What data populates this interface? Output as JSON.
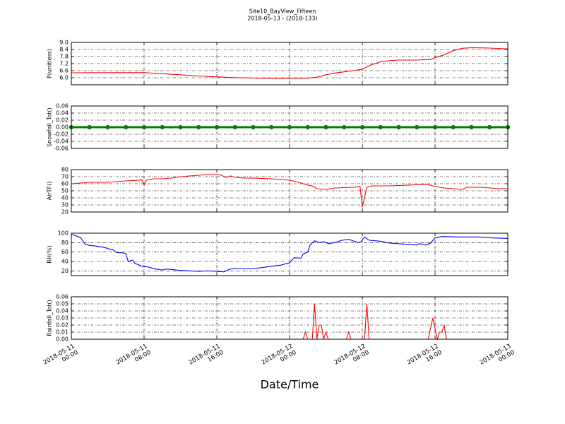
{
  "figure": {
    "title": "Site10_BayView_Fifteen",
    "subtitle": "2018-05-13 - (2018-133)",
    "xlabel": "Date/Time"
  },
  "chart_data": [
    {
      "type": "line",
      "ylabel": "P(unitless)",
      "color": "#ff0000",
      "grid": true,
      "ylim": [
        5.4,
        9.0
      ],
      "yticks": [
        {
          "value": 6,
          "label": "6.0"
        },
        6.6,
        7.2,
        7.8,
        8.4,
        {
          "value": 9,
          "label": "9.0"
        }
      ],
      "x": [
        "2018-05-11 00:00",
        "2018-05-11 08:00",
        "2018-05-11 10:00",
        "2018-05-11 12:00",
        "2018-05-11 14:00",
        "2018-05-11 16:00",
        "2018-05-11 18:00",
        "2018-05-11 20:00",
        "2018-05-11 22:00",
        "2018-05-12 00:00",
        "2018-05-12 02:00",
        "2018-05-12 03:00",
        "2018-05-12 04:00",
        "2018-05-12 05:00",
        "2018-05-12 06:00",
        "2018-05-12 07:00",
        "2018-05-12 08:00",
        "2018-05-12 09:00",
        "2018-05-12 10:00",
        "2018-05-12 11:00",
        "2018-05-12 12:00",
        "2018-05-12 14:00",
        "2018-05-12 15:30",
        "2018-05-12 16:00",
        "2018-05-12 17:00",
        "2018-05-12 18:00",
        "2018-05-12 19:00",
        "2018-05-12 20:00",
        "2018-05-12 22:00",
        "2018-05-13 00:00"
      ],
      "values": [
        6.42,
        6.43,
        6.34,
        6.25,
        6.15,
        6.07,
        6.01,
        5.97,
        5.95,
        5.95,
        5.96,
        6.05,
        6.25,
        6.4,
        6.5,
        6.6,
        6.72,
        7.1,
        7.35,
        7.45,
        7.5,
        7.5,
        7.55,
        7.7,
        7.95,
        8.3,
        8.5,
        8.55,
        8.52,
        8.45
      ]
    },
    {
      "type": "line",
      "ylabel": "Snowfall_Tot()",
      "color": "#008000",
      "grid": true,
      "markers": true,
      "ylim": [
        -0.06,
        0.06
      ],
      "yticks": [
        -0.06,
        -0.04,
        -0.02,
        {
          "value": 0,
          "label": "0.00"
        },
        0.02,
        0.04,
        0.06
      ],
      "x": [
        "2018-05-11 00:00",
        "2018-05-11 02:00",
        "2018-05-11 04:00",
        "2018-05-11 06:00",
        "2018-05-11 08:00",
        "2018-05-11 10:00",
        "2018-05-11 12:00",
        "2018-05-11 14:00",
        "2018-05-11 16:00",
        "2018-05-11 18:00",
        "2018-05-11 20:00",
        "2018-05-11 22:00",
        "2018-05-12 00:00",
        "2018-05-12 02:00",
        "2018-05-12 04:00",
        "2018-05-12 06:00",
        "2018-05-12 08:00",
        "2018-05-12 10:00",
        "2018-05-12 12:00",
        "2018-05-12 14:00",
        "2018-05-12 16:00",
        "2018-05-12 18:00",
        "2018-05-12 20:00",
        "2018-05-12 22:00",
        "2018-05-13 00:00"
      ],
      "values": [
        0,
        0,
        0,
        0,
        0,
        0,
        0,
        0,
        0,
        0,
        0,
        0,
        0,
        0,
        0,
        0,
        0,
        0,
        0,
        0,
        0,
        0,
        0,
        0,
        0
      ]
    },
    {
      "type": "line",
      "ylabel": "AirTF()",
      "color": "#ff0000",
      "grid": true,
      "ylim": [
        20,
        80
      ],
      "yticks": [
        20,
        30,
        40,
        50,
        60,
        70,
        80
      ],
      "x": [
        "2018-05-11 00:00",
        "2018-05-11 01:00",
        "2018-05-11 02:00",
        "2018-05-11 04:00",
        "2018-05-11 06:00",
        "2018-05-11 07:30",
        "2018-05-11 07:45",
        "2018-05-11 08:00",
        "2018-05-11 08:15",
        "2018-05-11 09:00",
        "2018-05-11 10:00",
        "2018-05-11 11:00",
        "2018-05-11 12:00",
        "2018-05-11 13:00",
        "2018-05-11 14:00",
        "2018-05-11 15:00",
        "2018-05-11 16:00",
        "2018-05-11 16:30",
        "2018-05-11 17:00",
        "2018-05-11 17:30",
        "2018-05-11 18:00",
        "2018-05-11 19:00",
        "2018-05-11 20:00",
        "2018-05-11 22:00",
        "2018-05-12 00:00",
        "2018-05-12 01:00",
        "2018-05-12 02:00",
        "2018-05-12 02:30",
        "2018-05-12 03:00",
        "2018-05-12 04:00",
        "2018-05-12 05:00",
        "2018-05-12 07:00",
        "2018-05-12 07:45",
        "2018-05-12 08:00",
        "2018-05-12 08:30",
        "2018-05-12 09:00",
        "2018-05-12 11:00",
        "2018-05-12 13:00",
        "2018-05-12 15:00",
        "2018-05-12 15:30",
        "2018-05-12 16:00",
        "2018-05-12 17:00",
        "2018-05-12 18:00",
        "2018-05-12 19:00",
        "2018-05-12 19:30",
        "2018-05-12 21:00",
        "2018-05-12 23:00",
        "2018-05-13 00:00"
      ],
      "values": [
        60,
        61,
        62,
        62,
        64,
        65,
        66,
        58,
        65,
        67,
        67,
        68,
        70,
        71,
        72,
        73,
        73,
        72,
        69,
        71,
        69,
        68,
        68,
        67,
        65,
        62,
        58,
        57,
        53,
        52,
        54,
        55,
        56,
        27,
        55,
        57,
        57,
        58,
        59,
        58,
        56,
        54,
        53,
        52,
        55,
        55,
        53,
        53
      ]
    },
    {
      "type": "line",
      "ylabel": "RH(%)",
      "color": "#0000ff",
      "grid": true,
      "ylim": [
        10,
        100
      ],
      "yticks": [
        20,
        40,
        60,
        80,
        100
      ],
      "x": [
        "2018-05-11 00:00",
        "2018-05-11 01:00",
        "2018-05-11 01:30",
        "2018-05-11 02:00",
        "2018-05-11 03:00",
        "2018-05-11 04:00",
        "2018-05-11 04:15",
        "2018-05-11 04:30",
        "2018-05-11 05:00",
        "2018-05-11 05:45",
        "2018-05-11 06:00",
        "2018-05-11 06:15",
        "2018-05-11 06:45",
        "2018-05-11 07:00",
        "2018-05-11 07:45",
        "2018-05-11 08:30",
        "2018-05-11 09:15",
        "2018-05-11 10:00",
        "2018-05-11 10:30",
        "2018-05-11 11:00",
        "2018-05-11 12:00",
        "2018-05-11 13:00",
        "2018-05-11 14:00",
        "2018-05-11 15:00",
        "2018-05-11 16:00",
        "2018-05-11 16:45",
        "2018-05-11 17:30",
        "2018-05-11 18:00",
        "2018-05-11 20:00",
        "2018-05-11 21:00",
        "2018-05-11 22:00",
        "2018-05-11 23:00",
        "2018-05-11 23:45",
        "2018-05-12 00:00",
        "2018-05-12 00:30",
        "2018-05-12 01:15",
        "2018-05-12 01:30",
        "2018-05-12 02:00",
        "2018-05-12 02:15",
        "2018-05-12 02:45",
        "2018-05-12 03:15",
        "2018-05-12 03:45",
        "2018-05-12 04:15",
        "2018-05-12 05:00",
        "2018-05-12 05:45",
        "2018-05-12 06:30",
        "2018-05-12 07:15",
        "2018-05-12 07:45",
        "2018-05-12 08:15",
        "2018-05-12 08:45",
        "2018-05-12 10:00",
        "2018-05-12 11:00",
        "2018-05-12 12:30",
        "2018-05-12 14:00",
        "2018-05-12 14:15",
        "2018-05-12 15:00",
        "2018-05-12 15:30",
        "2018-05-12 16:00",
        "2018-05-12 16:45",
        "2018-05-12 18:30",
        "2018-05-12 20:45",
        "2018-05-12 22:15",
        "2018-05-13 00:00"
      ],
      "values": [
        98,
        91,
        77,
        74,
        72,
        68,
        65,
        66,
        59,
        58,
        56,
        40,
        43,
        36,
        30,
        28,
        24,
        22,
        24,
        23,
        21,
        20,
        19,
        20,
        19,
        18,
        24,
        25,
        25,
        27,
        30,
        32,
        36,
        37,
        48,
        47,
        56,
        60,
        75,
        84,
        80,
        82,
        78,
        80,
        85,
        87,
        82,
        80,
        92,
        85,
        83,
        79,
        77,
        75,
        78,
        75,
        79,
        90,
        93,
        92,
        92,
        90,
        89
      ]
    },
    {
      "type": "line",
      "ylabel": "Rainfall_Tot()",
      "color": "#ff0000",
      "grid": true,
      "ylim": [
        0,
        0.06
      ],
      "yticks": [
        {
          "value": 0,
          "label": "0.00"
        },
        0.01,
        0.02,
        0.03,
        0.04,
        0.05,
        0.06
      ],
      "xlim": [
        "2018-05-11 00:00",
        "2018-05-13 00:00"
      ],
      "xticks": [
        {
          "value": "2018-05-11 00:00",
          "label": "2018-05-11\n00:00"
        },
        {
          "value": "2018-05-11 08:00",
          "label": "2018-05-11\n08:00"
        },
        {
          "value": "2018-05-11 16:00",
          "label": "2018-05-11\n16:00"
        },
        {
          "value": "2018-05-12 00:00",
          "label": "2018-05-12\n00:00"
        },
        {
          "value": "2018-05-12 08:00",
          "label": "2018-05-12\n08:00"
        },
        {
          "value": "2018-05-12 16:00",
          "label": "2018-05-12\n16:00"
        },
        {
          "value": "2018-05-13 00:00",
          "label": "2018-05-13\n00:00"
        }
      ],
      "x": [
        "2018-05-11 00:00",
        "2018-05-12 01:30",
        "2018-05-12 01:45",
        "2018-05-12 02:00",
        "2018-05-12 02:30",
        "2018-05-12 02:45",
        "2018-05-12 03:00",
        "2018-05-12 03:15",
        "2018-05-12 03:30",
        "2018-05-12 03:45",
        "2018-05-12 04:00",
        "2018-05-12 04:15",
        "2018-05-12 06:15",
        "2018-05-12 06:30",
        "2018-05-12 06:45",
        "2018-05-12 08:15",
        "2018-05-12 08:30",
        "2018-05-12 08:45",
        "2018-05-12 15:15",
        "2018-05-12 15:45",
        "2018-05-12 16:15",
        "2018-05-12 16:30",
        "2018-05-12 16:45",
        "2018-05-12 17:00",
        "2018-05-12 17:15",
        "2018-05-13 00:00"
      ],
      "values": [
        0,
        0,
        0.01,
        0,
        0,
        0.05,
        0,
        0.02,
        0.02,
        0,
        0.01,
        0,
        0,
        0.01,
        0,
        0,
        0.05,
        0,
        0,
        0.03,
        0,
        0.01,
        0.01,
        0.02,
        0,
        0
      ]
    }
  ]
}
